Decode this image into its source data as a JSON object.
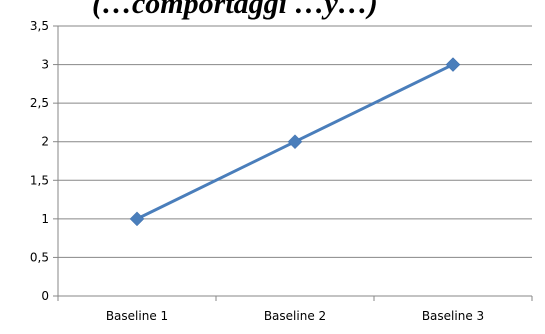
{
  "chart_data": {
    "type": "line",
    "title": "(…comportaggi …y…)",
    "categories": [
      "Baseline 1",
      "Baseline 2",
      "Baseline 3"
    ],
    "series": [
      {
        "values": [
          1,
          2,
          3
        ],
        "color": "#4a7ebb",
        "marker": "diamond"
      }
    ],
    "ylim": [
      0,
      3.5
    ],
    "yticks": [
      "0",
      "0,5",
      "1",
      "1,5",
      "2",
      "2,5",
      "3",
      "3,5"
    ],
    "grid": true,
    "legend": "none"
  }
}
